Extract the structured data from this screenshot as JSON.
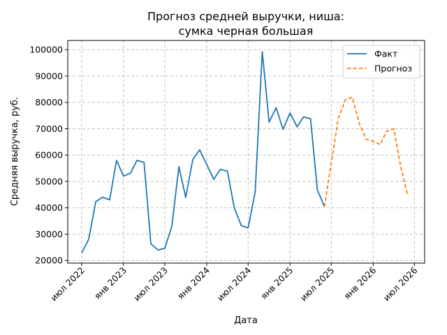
{
  "chart_data": {
    "type": "line",
    "title_lines": [
      "Прогноз средней выручки, ниша:",
      "сумка черная большая"
    ],
    "xlabel": "Дата",
    "ylabel": "Средняя выручка, руб.",
    "ylim": [
      19000,
      103500
    ],
    "yticks": [
      20000,
      30000,
      40000,
      50000,
      60000,
      70000,
      80000,
      90000,
      100000
    ],
    "xlim": [
      "2022-05-01",
      "2026-08-15"
    ],
    "xticks": [
      {
        "date": "2022-07-01",
        "label": "июл 2022"
      },
      {
        "date": "2023-01-01",
        "label": "янв 2023"
      },
      {
        "date": "2023-07-01",
        "label": "июл 2023"
      },
      {
        "date": "2024-01-01",
        "label": "янв 2024"
      },
      {
        "date": "2024-07-01",
        "label": "июл 2024"
      },
      {
        "date": "2025-01-01",
        "label": "янв 2025"
      },
      {
        "date": "2025-07-01",
        "label": "июл 2025"
      },
      {
        "date": "2026-01-01",
        "label": "янв 2026"
      },
      {
        "date": "2026-07-01",
        "label": "июл 2026"
      }
    ],
    "grid": true,
    "legend_position": "top-right",
    "series": [
      {
        "name": "Факт",
        "color": "#1f77b4",
        "style": "solid",
        "points": [
          [
            "2022-07-01",
            22800
          ],
          [
            "2022-08-01",
            28000
          ],
          [
            "2022-09-01",
            42300
          ],
          [
            "2022-10-01",
            44000
          ],
          [
            "2022-11-01",
            43000
          ],
          [
            "2022-12-01",
            58000
          ],
          [
            "2023-01-01",
            52000
          ],
          [
            "2023-02-01",
            53200
          ],
          [
            "2023-03-01",
            58000
          ],
          [
            "2023-04-01",
            57200
          ],
          [
            "2023-05-01",
            26300
          ],
          [
            "2023-06-01",
            24000
          ],
          [
            "2023-07-01",
            24600
          ],
          [
            "2023-08-01",
            33000
          ],
          [
            "2023-09-01",
            55600
          ],
          [
            "2023-10-01",
            43900
          ],
          [
            "2023-11-01",
            58300
          ],
          [
            "2023-12-01",
            62000
          ],
          [
            "2024-01-01",
            56500
          ],
          [
            "2024-02-01",
            50800
          ],
          [
            "2024-03-01",
            54600
          ],
          [
            "2024-04-01",
            53900
          ],
          [
            "2024-05-01",
            40000
          ],
          [
            "2024-06-01",
            33200
          ],
          [
            "2024-07-01",
            32400
          ],
          [
            "2024-08-01",
            46000
          ],
          [
            "2024-09-01",
            99300
          ],
          [
            "2024-10-01",
            72500
          ],
          [
            "2024-11-01",
            78000
          ],
          [
            "2024-12-01",
            69800
          ],
          [
            "2025-01-01",
            76000
          ],
          [
            "2025-02-01",
            70700
          ],
          [
            "2025-03-01",
            74500
          ],
          [
            "2025-04-01",
            73800
          ],
          [
            "2025-05-01",
            46800
          ],
          [
            "2025-06-01",
            40400
          ]
        ]
      },
      {
        "name": "Прогноз",
        "color": "#ff7f0e",
        "style": "dashed",
        "points": [
          [
            "2025-06-01",
            40400
          ],
          [
            "2025-07-01",
            57000
          ],
          [
            "2025-08-01",
            74000
          ],
          [
            "2025-09-01",
            81000
          ],
          [
            "2025-10-01",
            82000
          ],
          [
            "2025-11-01",
            72000
          ],
          [
            "2025-12-01",
            66000
          ],
          [
            "2026-01-01",
            65200
          ],
          [
            "2026-02-01",
            64000
          ],
          [
            "2026-03-01",
            69000
          ],
          [
            "2026-04-01",
            70000
          ],
          [
            "2026-05-01",
            56000
          ],
          [
            "2026-06-01",
            45000
          ]
        ]
      }
    ]
  }
}
